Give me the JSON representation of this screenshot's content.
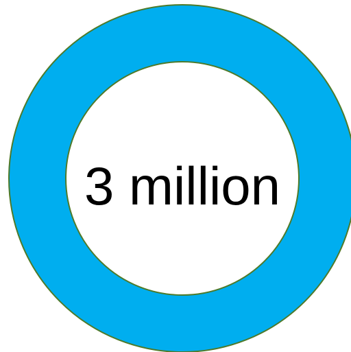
{
  "graphic": {
    "center_text": "3 million",
    "colors": {
      "ring_fill": "#00AEEF",
      "ring_outline": "#4E7A2A",
      "inner_fill": "#FFFFFF",
      "text": "#000000",
      "background": "#FFFFFF"
    }
  }
}
